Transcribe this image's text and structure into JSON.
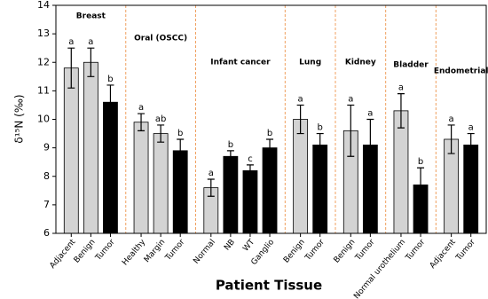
{
  "chart_data": {
    "type": "bar",
    "xlabel": "Patient Tissue",
    "ylabel": "δ¹⁵N (‰)",
    "ylim": [
      6,
      14
    ],
    "yticks": [
      6,
      7,
      8,
      9,
      10,
      11,
      12,
      13,
      14
    ],
    "groups": [
      {
        "name": "Breast",
        "categories": [
          "Adjacent",
          "Benign",
          "Tumor"
        ],
        "values": [
          11.8,
          12.0,
          10.6
        ],
        "errors": [
          0.7,
          0.5,
          0.6
        ],
        "letters": [
          "a",
          "a",
          "b"
        ],
        "colors": [
          "#d3d3d3",
          "#d3d3d3",
          "#000000"
        ]
      },
      {
        "name": "Oral (OSCC)",
        "categories": [
          "Healthy",
          "Margin",
          "Tumor"
        ],
        "values": [
          9.9,
          9.5,
          8.9
        ],
        "errors": [
          0.3,
          0.3,
          0.4
        ],
        "letters": [
          "a",
          "ab",
          "b"
        ],
        "colors": [
          "#d3d3d3",
          "#d3d3d3",
          "#000000"
        ]
      },
      {
        "name": "Infant cancer",
        "categories": [
          "Normal",
          "NB",
          "WT",
          "Ganglio"
        ],
        "values": [
          7.6,
          8.7,
          8.2,
          9.0
        ],
        "errors": [
          0.3,
          0.2,
          0.2,
          0.3
        ],
        "letters": [
          "a",
          "b",
          "c",
          "b"
        ],
        "colors": [
          "#d3d3d3",
          "#000000",
          "#000000",
          "#000000"
        ]
      },
      {
        "name": "Lung",
        "categories": [
          "Benign",
          "Tumor"
        ],
        "values": [
          10.0,
          9.1
        ],
        "errors": [
          0.5,
          0.4
        ],
        "letters": [
          "a",
          "b"
        ],
        "colors": [
          "#d3d3d3",
          "#000000"
        ]
      },
      {
        "name": "Kidney",
        "categories": [
          "Benign",
          "Tumor"
        ],
        "values": [
          9.6,
          9.1
        ],
        "errors": [
          0.9,
          0.9
        ],
        "letters": [
          "a",
          "a"
        ],
        "colors": [
          "#d3d3d3",
          "#000000"
        ]
      },
      {
        "name": "Bladder",
        "categories": [
          "Normal urothelium",
          "Tumor"
        ],
        "values": [
          10.3,
          7.7
        ],
        "errors": [
          0.6,
          0.6
        ],
        "letters": [
          "a",
          "b"
        ],
        "colors": [
          "#d3d3d3",
          "#000000"
        ]
      },
      {
        "name": "Endometrial",
        "categories": [
          "Adjacent",
          "Tumor"
        ],
        "values": [
          9.3,
          9.1
        ],
        "errors": [
          0.5,
          0.4
        ],
        "letters": [
          "a",
          "a"
        ],
        "colors": [
          "#d3d3d3",
          "#000000"
        ]
      }
    ]
  }
}
